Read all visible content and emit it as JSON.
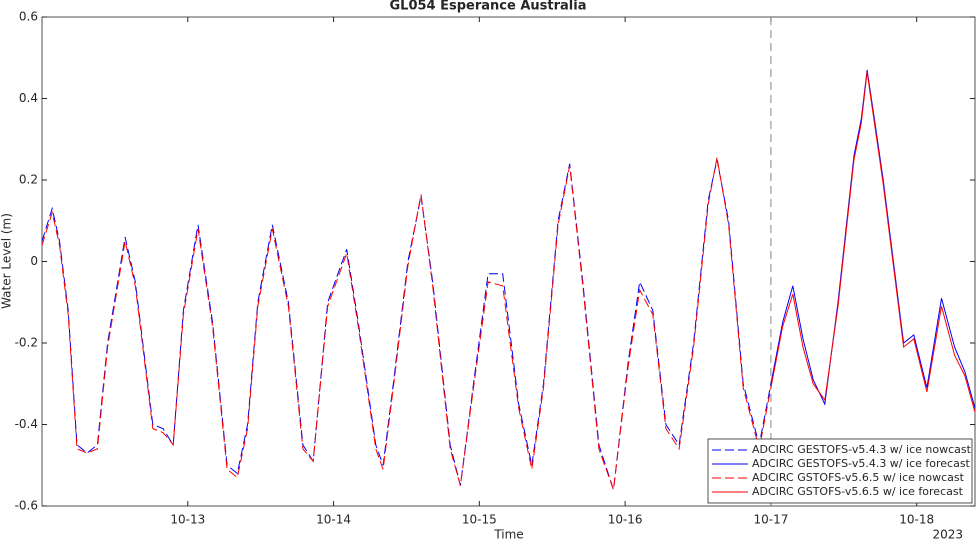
{
  "chart_data": {
    "type": "line",
    "title": "GL054 Esperance Australia",
    "x_label": "Time",
    "x_sublabel": "2023",
    "y_label": "Water Level (m)",
    "xlim": [
      0,
      6.4
    ],
    "xticks": [
      {
        "value": 1,
        "label": "10-13"
      },
      {
        "value": 2,
        "label": "10-14"
      },
      {
        "value": 3,
        "label": "10-15"
      },
      {
        "value": 4,
        "label": "10-16"
      },
      {
        "value": 5,
        "label": "10-17"
      },
      {
        "value": 6,
        "label": "10-18"
      }
    ],
    "ylim": [
      -0.6,
      0.6
    ],
    "yticks": [
      -0.6,
      -0.4,
      -0.2,
      0,
      0.2,
      0.4,
      0.6
    ],
    "vlines": [
      5
    ],
    "legend": "bottom-right",
    "series": [
      {
        "name": "ADCIRC GESTOFS-v5.4.3 w/ ice nowcast",
        "color": "#0000ff",
        "dash": true,
        "x": [
          0,
          0.07,
          0.12,
          0.18,
          0.24,
          0.31,
          0.38,
          0.45,
          0.57,
          0.64,
          0.76,
          0.83,
          0.9,
          0.97,
          1.07,
          1.17,
          1.27,
          1.34,
          1.41,
          1.48,
          1.58,
          1.69,
          1.79,
          1.86,
          1.96,
          2.09,
          2.17,
          2.29,
          2.34,
          2.41,
          2.51,
          2.6,
          2.68,
          2.8,
          2.87,
          2.96,
          3.06,
          3.16,
          3.27,
          3.36,
          3.44,
          3.54,
          3.62,
          3.71,
          3.82,
          3.92,
          4.02,
          4.1,
          4.19,
          4.28,
          4.37,
          4.47,
          4.57,
          4.63,
          4.71,
          4.81,
          4.92,
          5
        ],
        "values": [
          0.05,
          0.13,
          0.05,
          -0.12,
          -0.45,
          -0.47,
          -0.45,
          -0.2,
          0.06,
          -0.05,
          -0.4,
          -0.41,
          -0.45,
          -0.12,
          0.09,
          -0.15,
          -0.5,
          -0.52,
          -0.4,
          -0.1,
          0.09,
          -0.1,
          -0.45,
          -0.49,
          -0.1,
          0.03,
          -0.15,
          -0.45,
          -0.5,
          -0.3,
          0.0,
          0.16,
          -0.05,
          -0.45,
          -0.55,
          -0.3,
          -0.03,
          -0.03,
          -0.35,
          -0.5,
          -0.3,
          0.1,
          0.24,
          -0.05,
          -0.45,
          -0.56,
          -0.25,
          -0.05,
          -0.12,
          -0.4,
          -0.45,
          -0.2,
          0.15,
          0.25,
          0.1,
          -0.3,
          -0.45,
          -0.3
        ]
      },
      {
        "name": "ADCIRC GESTOFS-v5.4.3 w/ ice forecast",
        "color": "#0000ff",
        "dash": false,
        "x": [
          5,
          5.08,
          5.15,
          5.22,
          5.29,
          5.37,
          5.46,
          5.57,
          5.62,
          5.66,
          5.71,
          5.77,
          5.84,
          5.91,
          5.98,
          6.07,
          6.17,
          6.26,
          6.33,
          6.4
        ],
        "values": [
          -0.3,
          -0.15,
          -0.06,
          -0.19,
          -0.29,
          -0.35,
          -0.1,
          0.26,
          0.35,
          0.47,
          0.35,
          0.2,
          0.0,
          -0.2,
          -0.18,
          -0.31,
          -0.09,
          -0.21,
          -0.27,
          -0.36
        ]
      },
      {
        "name": "ADCIRC GSTOFS-v5.6.5 w/ ice nowcast",
        "color": "#ff0000",
        "dash": true,
        "x": [
          0,
          0.07,
          0.12,
          0.18,
          0.24,
          0.31,
          0.38,
          0.45,
          0.57,
          0.64,
          0.76,
          0.83,
          0.9,
          0.97,
          1.07,
          1.17,
          1.27,
          1.34,
          1.41,
          1.48,
          1.58,
          1.69,
          1.79,
          1.86,
          1.96,
          2.09,
          2.17,
          2.29,
          2.34,
          2.41,
          2.51,
          2.6,
          2.68,
          2.8,
          2.87,
          2.96,
          3.06,
          3.16,
          3.27,
          3.36,
          3.44,
          3.54,
          3.62,
          3.71,
          3.82,
          3.92,
          4.02,
          4.1,
          4.19,
          4.28,
          4.37,
          4.47,
          4.57,
          4.63,
          4.71,
          4.81,
          4.92,
          5
        ],
        "values": [
          0.04,
          0.12,
          0.04,
          -0.13,
          -0.46,
          -0.47,
          -0.46,
          -0.21,
          0.05,
          -0.06,
          -0.41,
          -0.42,
          -0.45,
          -0.13,
          0.08,
          -0.16,
          -0.51,
          -0.53,
          -0.41,
          -0.11,
          0.08,
          -0.11,
          -0.46,
          -0.49,
          -0.11,
          0.02,
          -0.16,
          -0.46,
          -0.51,
          -0.31,
          -0.01,
          0.165,
          -0.06,
          -0.46,
          -0.55,
          -0.31,
          -0.05,
          -0.06,
          -0.36,
          -0.51,
          -0.31,
          0.09,
          0.235,
          -0.06,
          -0.46,
          -0.56,
          -0.26,
          -0.07,
          -0.13,
          -0.41,
          -0.46,
          -0.21,
          0.14,
          0.255,
          0.09,
          -0.31,
          -0.46,
          -0.31
        ]
      },
      {
        "name": "ADCIRC GSTOFS-v5.6.5 w/ ice forecast",
        "color": "#ff0000",
        "dash": false,
        "x": [
          5,
          5.08,
          5.15,
          5.22,
          5.29,
          5.37,
          5.46,
          5.57,
          5.62,
          5.66,
          5.71,
          5.77,
          5.84,
          5.91,
          5.98,
          6.07,
          6.17,
          6.26,
          6.33,
          6.4
        ],
        "values": [
          -0.31,
          -0.16,
          -0.08,
          -0.21,
          -0.3,
          -0.34,
          -0.11,
          0.25,
          0.34,
          0.465,
          0.34,
          0.19,
          -0.01,
          -0.21,
          -0.19,
          -0.32,
          -0.11,
          -0.23,
          -0.28,
          -0.37
        ]
      }
    ]
  }
}
